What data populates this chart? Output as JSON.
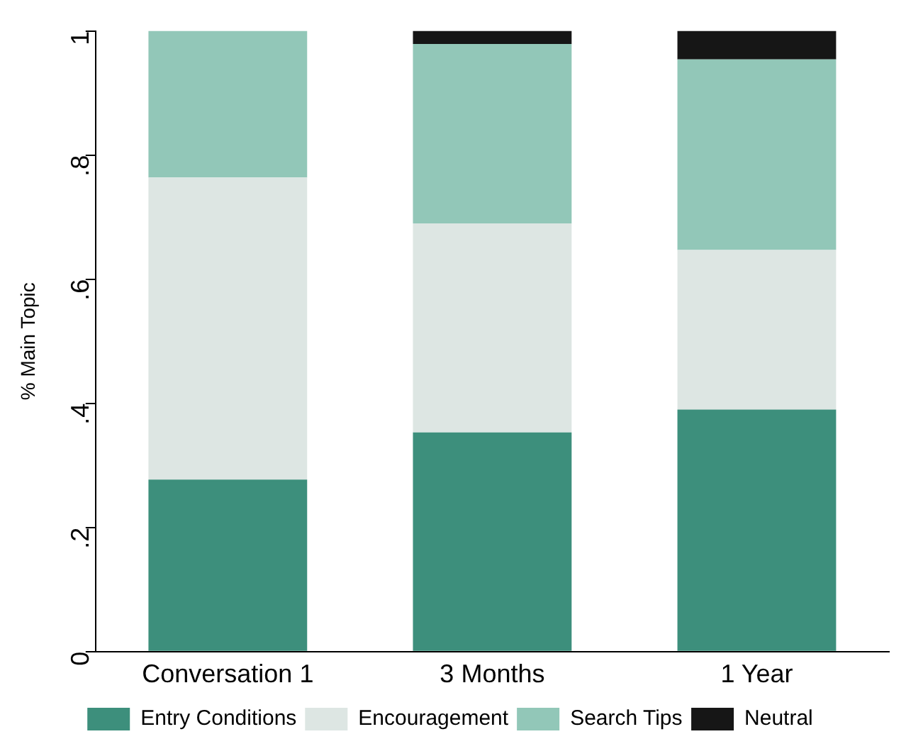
{
  "chart_data": {
    "type": "bar",
    "stacked": true,
    "ylabel": "% Main Topic",
    "categories": [
      "Conversation 1",
      "3 Months",
      "1 Year"
    ],
    "series": [
      {
        "name": "Entry Conditions",
        "color": "#3d8f7c",
        "values": [
          0.277,
          0.353,
          0.39
        ]
      },
      {
        "name": "Encouragement",
        "color": "#dde6e3",
        "values": [
          0.487,
          0.337,
          0.257
        ]
      },
      {
        "name": "Search Tips",
        "color": "#92c7b8",
        "values": [
          0.236,
          0.289,
          0.307
        ]
      },
      {
        "name": "Neutral",
        "color": "#161616",
        "values": [
          0,
          0.021,
          0.046
        ]
      }
    ],
    "ylim": [
      0,
      1
    ],
    "yticks": [
      0,
      {
        "value": 0.2,
        "label": ".2"
      },
      {
        "value": 0.4,
        "label": ".4"
      },
      {
        "value": 0.6,
        "label": ".6"
      },
      {
        "value": 0.8,
        "label": ".8"
      },
      1
    ],
    "grid": false,
    "legend": "bottom"
  }
}
